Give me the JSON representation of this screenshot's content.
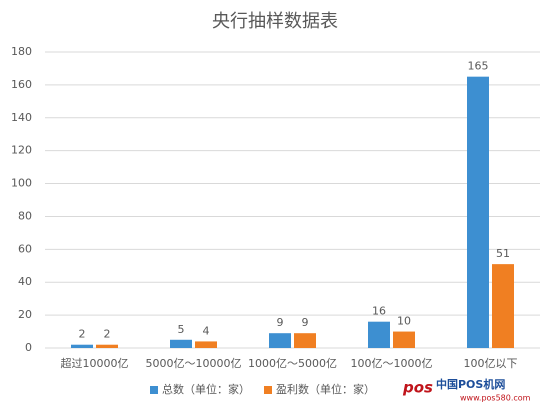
{
  "chart_data": {
    "type": "bar",
    "title": "央行抽样数据表",
    "categories": [
      "超过10000亿",
      "5000亿～10000亿",
      "1000亿～5000亿",
      "100亿～1000亿",
      "100亿以下"
    ],
    "series": [
      {
        "name": "总数（单位：家）",
        "color": "#3d8fd1",
        "values": [
          2,
          5,
          9,
          16,
          165
        ]
      },
      {
        "name": "盈利数（单位：家）",
        "color": "#f07f22",
        "values": [
          2,
          4,
          9,
          10,
          51
        ]
      }
    ],
    "ylim": [
      0,
      180
    ],
    "yticks": [
      0,
      20,
      40,
      60,
      80,
      100,
      120,
      140,
      160,
      180
    ],
    "grid": true,
    "legend": "bottom"
  },
  "watermark": {
    "logo": "pos",
    "name": "中国POS机网",
    "url": "www.pos580.com"
  }
}
